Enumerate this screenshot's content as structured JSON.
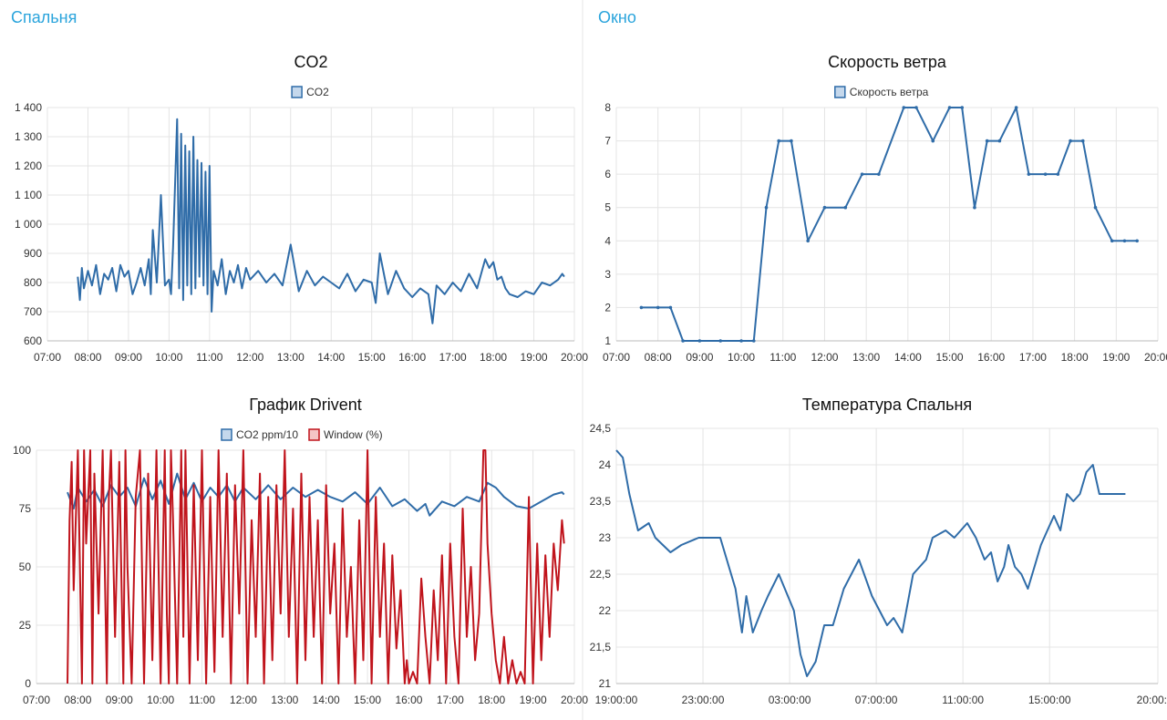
{
  "panels": {
    "left_title": "Спальня",
    "right_title": "Окно"
  },
  "chart_data": [
    {
      "type": "line",
      "title": "CO2",
      "x_ticks": [
        "07:00",
        "08:00",
        "09:00",
        "10:00",
        "11:00",
        "12:00",
        "13:00",
        "14:00",
        "15:00",
        "16:00",
        "17:00",
        "18:00",
        "19:00",
        "20:00"
      ],
      "y_ticks": [
        "600",
        "700",
        "800",
        "900",
        "1 000",
        "1 100",
        "1 200",
        "1 300",
        "1 400"
      ],
      "ylim": [
        600,
        1400
      ],
      "x_unit": "hours",
      "xlim": [
        7,
        20
      ],
      "legend": "top",
      "series": [
        {
          "name": "CO2",
          "color": "#2f6ca8",
          "x": [
            7.75,
            7.8,
            7.85,
            7.9,
            8.0,
            8.1,
            8.2,
            8.3,
            8.4,
            8.5,
            8.6,
            8.7,
            8.8,
            8.9,
            9.0,
            9.1,
            9.2,
            9.3,
            9.4,
            9.5,
            9.55,
            9.6,
            9.7,
            9.8,
            9.9,
            10.0,
            10.05,
            10.1,
            10.2,
            10.25,
            10.3,
            10.35,
            10.4,
            10.45,
            10.5,
            10.55,
            10.6,
            10.65,
            10.7,
            10.75,
            10.8,
            10.85,
            10.9,
            10.95,
            11.0,
            11.05,
            11.1,
            11.2,
            11.3,
            11.4,
            11.5,
            11.6,
            11.7,
            11.8,
            11.9,
            12.0,
            12.2,
            12.4,
            12.6,
            12.8,
            13.0,
            13.2,
            13.4,
            13.6,
            13.8,
            14.0,
            14.2,
            14.4,
            14.6,
            14.8,
            15.0,
            15.1,
            15.2,
            15.4,
            15.6,
            15.8,
            16.0,
            16.2,
            16.4,
            16.5,
            16.6,
            16.8,
            17.0,
            17.2,
            17.4,
            17.6,
            17.8,
            17.9,
            18.0,
            18.1,
            18.2,
            18.3,
            18.4,
            18.6,
            18.8,
            19.0,
            19.2,
            19.4,
            19.6,
            19.7,
            19.75
          ],
          "y": [
            820,
            740,
            850,
            780,
            840,
            790,
            860,
            760,
            830,
            810,
            850,
            770,
            860,
            820,
            840,
            760,
            800,
            850,
            790,
            880,
            760,
            980,
            800,
            1100,
            790,
            810,
            760,
            920,
            1360,
            780,
            1310,
            740,
            1270,
            790,
            1250,
            760,
            1300,
            780,
            1220,
            820,
            1210,
            790,
            1180,
            760,
            1200,
            700,
            840,
            790,
            880,
            760,
            840,
            800,
            860,
            780,
            850,
            810,
            840,
            800,
            830,
            790,
            930,
            770,
            840,
            790,
            820,
            800,
            780,
            830,
            770,
            810,
            800,
            730,
            900,
            760,
            840,
            780,
            750,
            780,
            760,
            660,
            790,
            760,
            800,
            770,
            830,
            780,
            880,
            850,
            870,
            810,
            820,
            780,
            760,
            750,
            770,
            760,
            800,
            790,
            810,
            830,
            820
          ]
        }
      ]
    },
    {
      "type": "line",
      "title": "Скорость ветра",
      "x_ticks": [
        "07:00",
        "08:00",
        "09:00",
        "10:00",
        "11:00",
        "12:00",
        "13:00",
        "14:00",
        "15:00",
        "16:00",
        "17:00",
        "18:00",
        "19:00",
        "20:00"
      ],
      "y_ticks": [
        "1",
        "2",
        "3",
        "4",
        "5",
        "6",
        "7",
        "8"
      ],
      "ylim": [
        1,
        8
      ],
      "x_unit": "hours",
      "xlim": [
        7,
        20
      ],
      "legend": "top",
      "series": [
        {
          "name": "Скорость ветра",
          "color": "#2f6ca8",
          "x": [
            7.6,
            8.0,
            8.3,
            8.6,
            9.0,
            9.5,
            10.0,
            10.3,
            10.6,
            10.9,
            11.2,
            11.6,
            12.0,
            12.5,
            12.9,
            13.3,
            13.9,
            14.2,
            14.6,
            15.0,
            15.3,
            15.6,
            15.9,
            16.2,
            16.6,
            16.9,
            17.3,
            17.6,
            17.9,
            18.2,
            18.5,
            18.9,
            19.2,
            19.5
          ],
          "y": [
            2,
            2,
            2,
            1,
            1,
            1,
            1,
            1,
            5,
            7,
            7,
            4,
            5,
            5,
            6,
            6,
            8,
            8,
            7,
            8,
            8,
            5,
            7,
            7,
            8,
            6,
            6,
            6,
            7,
            7,
            5,
            4,
            4,
            4
          ]
        }
      ]
    },
    {
      "type": "line",
      "title": "График Drivent",
      "x_ticks": [
        "07:00",
        "08:00",
        "09:00",
        "10:00",
        "11:00",
        "12:00",
        "13:00",
        "14:00",
        "15:00",
        "16:00",
        "17:00",
        "18:00",
        "19:00",
        "20:00"
      ],
      "y_ticks": [
        "0",
        "25",
        "50",
        "75",
        "100"
      ],
      "ylim": [
        0,
        100
      ],
      "x_unit": "hours",
      "xlim": [
        7,
        20
      ],
      "legend": "top",
      "series": [
        {
          "name": "CO2 ppm/10",
          "color": "#2f6ca8",
          "x": [
            7.75,
            7.9,
            8.0,
            8.2,
            8.4,
            8.6,
            8.8,
            9.0,
            9.2,
            9.4,
            9.6,
            9.8,
            10.0,
            10.2,
            10.4,
            10.6,
            10.8,
            11.0,
            11.2,
            11.4,
            11.6,
            11.8,
            12.0,
            12.3,
            12.6,
            12.9,
            13.2,
            13.5,
            13.8,
            14.1,
            14.4,
            14.7,
            15.0,
            15.3,
            15.6,
            15.9,
            16.2,
            16.4,
            16.5,
            16.8,
            17.1,
            17.4,
            17.7,
            17.9,
            18.1,
            18.3,
            18.6,
            18.9,
            19.2,
            19.5,
            19.7,
            19.75
          ],
          "y": [
            82,
            75,
            84,
            78,
            83,
            76,
            85,
            80,
            84,
            76,
            88,
            79,
            87,
            77,
            90,
            79,
            86,
            78,
            84,
            80,
            85,
            78,
            84,
            79,
            85,
            79,
            84,
            80,
            83,
            80,
            78,
            82,
            77,
            84,
            76,
            79,
            74,
            77,
            72,
            78,
            76,
            80,
            78,
            86,
            84,
            80,
            76,
            75,
            78,
            81,
            82,
            81
          ]
        },
        {
          "name": "Window (%)",
          "color": "#c0141c",
          "x": [
            7.75,
            7.8,
            7.85,
            7.9,
            8.0,
            8.1,
            8.15,
            8.2,
            8.3,
            8.35,
            8.4,
            8.5,
            8.6,
            8.7,
            8.75,
            8.8,
            8.9,
            9.0,
            9.1,
            9.15,
            9.2,
            9.3,
            9.4,
            9.5,
            9.6,
            9.7,
            9.8,
            9.9,
            10.0,
            10.1,
            10.15,
            10.2,
            10.25,
            10.3,
            10.4,
            10.5,
            10.55,
            10.6,
            10.7,
            10.8,
            10.9,
            11.0,
            11.1,
            11.2,
            11.3,
            11.4,
            11.5,
            11.6,
            11.7,
            11.8,
            11.9,
            12.0,
            12.1,
            12.2,
            12.3,
            12.4,
            12.5,
            12.6,
            12.7,
            12.8,
            12.9,
            13.0,
            13.1,
            13.2,
            13.3,
            13.4,
            13.5,
            13.6,
            13.7,
            13.8,
            13.9,
            14.0,
            14.1,
            14.2,
            14.3,
            14.4,
            14.5,
            14.6,
            14.7,
            14.8,
            14.9,
            15.0,
            15.1,
            15.2,
            15.3,
            15.4,
            15.5,
            15.6,
            15.7,
            15.8,
            15.9,
            15.95,
            16.0,
            16.1,
            16.2,
            16.3,
            16.4,
            16.5,
            16.6,
            16.7,
            16.8,
            16.9,
            17.0,
            17.1,
            17.2,
            17.3,
            17.4,
            17.5,
            17.6,
            17.7,
            17.8,
            17.85,
            17.9,
            18.0,
            18.1,
            18.2,
            18.3,
            18.4,
            18.5,
            18.6,
            18.7,
            18.8,
            18.9,
            19.0,
            19.05,
            19.1,
            19.2,
            19.3,
            19.4,
            19.5,
            19.6,
            19.7,
            19.75
          ],
          "y": [
            0,
            70,
            95,
            40,
            100,
            0,
            100,
            60,
            100,
            0,
            90,
            30,
            100,
            0,
            80,
            100,
            20,
            95,
            0,
            100,
            50,
            0,
            80,
            100,
            0,
            90,
            10,
            100,
            0,
            100,
            30,
            0,
            100,
            70,
            0,
            100,
            20,
            100,
            0,
            85,
            10,
            100,
            0,
            80,
            5,
            100,
            20,
            90,
            0,
            85,
            30,
            100,
            0,
            70,
            20,
            90,
            0,
            80,
            10,
            85,
            30,
            100,
            20,
            75,
            0,
            90,
            10,
            80,
            20,
            70,
            0,
            85,
            30,
            60,
            0,
            75,
            20,
            50,
            0,
            70,
            10,
            100,
            0,
            80,
            20,
            60,
            0,
            55,
            15,
            40,
            0,
            10,
            0,
            5,
            0,
            45,
            20,
            0,
            40,
            10,
            55,
            0,
            60,
            20,
            0,
            75,
            20,
            50,
            10,
            30,
            100,
            100,
            60,
            30,
            10,
            0,
            20,
            0,
            10,
            0,
            5,
            0,
            80,
            0,
            30,
            60,
            10,
            55,
            20,
            60,
            40,
            70,
            60
          ]
        }
      ]
    },
    {
      "type": "line",
      "title": "Температура Спальня",
      "x_ticks": [
        "19:00:00",
        "23:00:00",
        "03:00:00",
        "07:00:00",
        "11:00:00",
        "15:00:00",
        "20:00:00"
      ],
      "y_ticks": [
        "21",
        "21,5",
        "22",
        "22,5",
        "23",
        "23,5",
        "24",
        "24,5"
      ],
      "ylim": [
        21,
        24.5
      ],
      "x_unit": "hours since 19:00:00",
      "xlim": [
        0,
        25
      ],
      "legend": "none",
      "series": [
        {
          "name": "",
          "color": "#2f6ca8",
          "x": [
            0,
            0.3,
            0.6,
            1.0,
            1.5,
            1.8,
            2.5,
            3,
            3.8,
            4.8,
            5.5,
            5.8,
            6.0,
            6.3,
            6.7,
            7.0,
            7.5,
            8.2,
            8.5,
            8.8,
            9.2,
            9.6,
            10.0,
            10.5,
            11.2,
            11.8,
            12.5,
            12.8,
            13.2,
            13.7,
            14.3,
            14.6,
            15.2,
            15.6,
            16.2,
            16.6,
            17.0,
            17.3,
            17.6,
            17.9,
            18.1,
            18.4,
            18.7,
            19.0,
            19.3,
            19.6,
            19.9,
            20.2,
            20.5,
            20.8,
            21.1,
            21.4,
            21.7,
            22.0,
            22.3,
            22.6,
            22.9,
            23.2,
            23.5
          ],
          "y": [
            24.2,
            24.1,
            23.6,
            23.1,
            23.2,
            23.0,
            22.8,
            22.9,
            23.0,
            23.0,
            22.3,
            21.7,
            22.2,
            21.7,
            22.0,
            22.2,
            22.5,
            22.0,
            21.4,
            21.1,
            21.3,
            21.8,
            21.8,
            22.3,
            22.7,
            22.2,
            21.8,
            21.9,
            21.7,
            22.5,
            22.7,
            23.0,
            23.1,
            23.0,
            23.2,
            23.0,
            22.7,
            22.8,
            22.4,
            22.6,
            22.9,
            22.6,
            22.5,
            22.3,
            22.6,
            22.9,
            23.1,
            23.3,
            23.1,
            23.6,
            23.5,
            23.6,
            23.9,
            24.0,
            23.6,
            23.6,
            23.6,
            23.6,
            23.6
          ]
        }
      ]
    }
  ]
}
